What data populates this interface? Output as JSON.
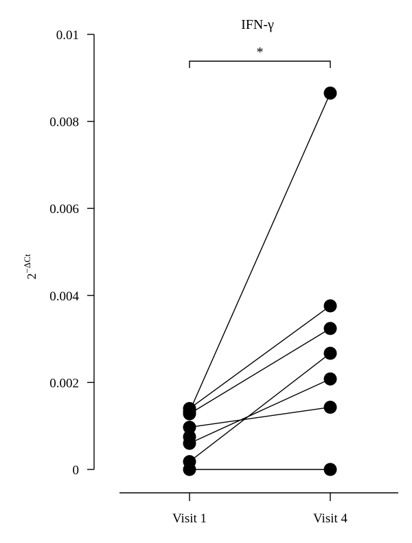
{
  "chart_data": {
    "type": "scatter",
    "title": "IFN-γ",
    "ylabel": "2",
    "ylabel_sup": "−ΔCt",
    "categories": [
      "Visit 1",
      "Visit 4"
    ],
    "ylim": [
      0,
      0.01
    ],
    "yticks": [
      "0",
      "0.002",
      "0.004",
      "0.006",
      "0.008",
      "0.01"
    ],
    "ytick_values": [
      0,
      0.002,
      0.004,
      0.006,
      0.008,
      0.01
    ],
    "pairs": [
      [
        0.00133,
        0.00865
      ],
      [
        0.0014,
        0.00376
      ],
      [
        0.00128,
        0.00324
      ],
      [
        0.00018,
        0.00267
      ],
      [
        0.0006,
        0.00208
      ],
      [
        0.00097,
        0.00143
      ],
      [
        0.0,
        0.0
      ]
    ],
    "visit1_extra_points": [
      0.00075
    ],
    "significance": {
      "from": "Visit 1",
      "to": "Visit 4",
      "label": "*"
    },
    "marker_color": "#000000",
    "line_color": "#000000"
  }
}
